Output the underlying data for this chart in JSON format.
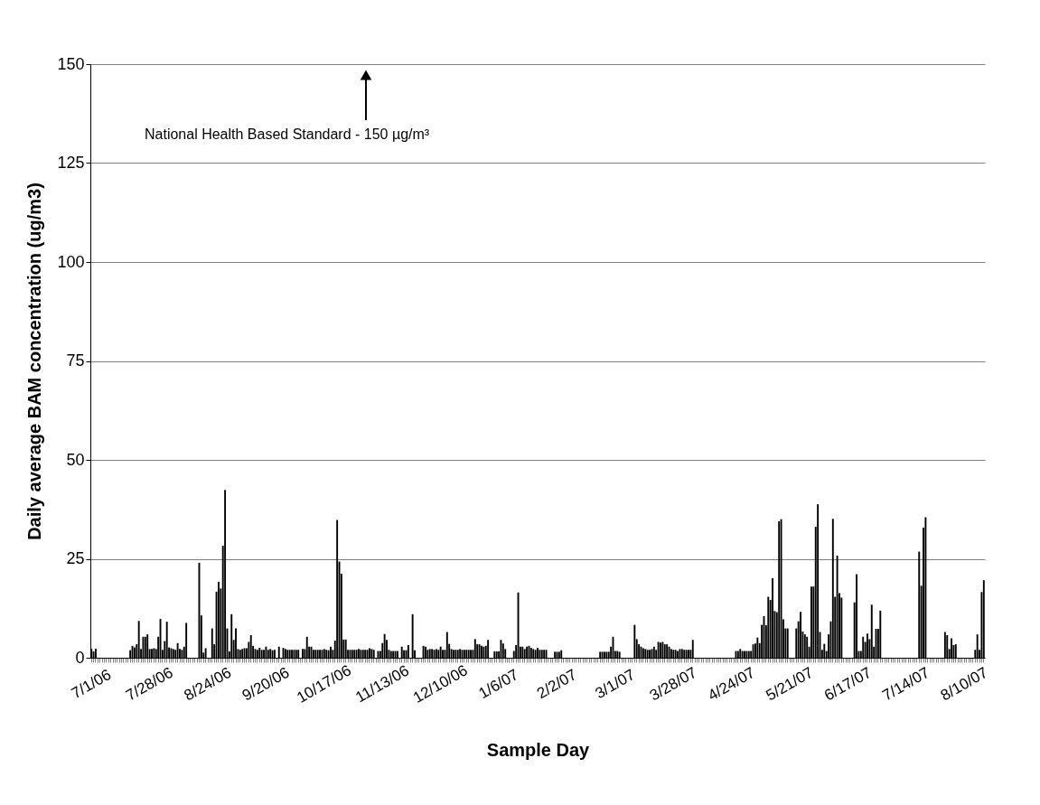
{
  "chart_data": {
    "type": "bar",
    "xlabel": "Sample Day",
    "ylabel": "Daily average BAM concentration (ug/m3)",
    "annotations": [
      "National Health Based Standard  - 150 µg/m³"
    ],
    "color": "#000000",
    "ylim": [
      0,
      150
    ],
    "yticks": [
      0,
      25,
      50,
      75,
      100,
      125,
      150
    ],
    "grid": "y",
    "categories": [
      "7/1/06",
      null,
      null,
      null,
      null,
      null,
      null,
      null,
      null,
      null,
      null,
      null,
      null,
      null,
      null,
      null,
      null,
      null,
      null,
      null,
      null,
      null,
      null,
      null,
      null,
      null,
      null,
      "7/28/06",
      null,
      null,
      null,
      null,
      null,
      null,
      null,
      null,
      null,
      null,
      null,
      null,
      null,
      null,
      null,
      null,
      null,
      null,
      null,
      null,
      null,
      null,
      null,
      null,
      null,
      null,
      "8/24/06",
      null,
      null,
      null,
      null,
      null,
      null,
      null,
      null,
      null,
      null,
      null,
      null,
      null,
      null,
      null,
      null,
      null,
      null,
      null,
      null,
      null,
      null,
      null,
      null,
      null,
      null,
      "9/20/06",
      null,
      null,
      null,
      null,
      null,
      null,
      null,
      null,
      null,
      null,
      null,
      null,
      null,
      null,
      null,
      null,
      null,
      null,
      null,
      null,
      null,
      null,
      null,
      null,
      null,
      null,
      "10/17/06",
      null,
      null,
      null,
      null,
      null,
      null,
      null,
      null,
      null,
      null,
      null,
      null,
      null,
      null,
      null,
      null,
      null,
      null,
      null,
      null,
      null,
      null,
      null,
      null,
      null,
      null,
      "11/13/06",
      null,
      null,
      null,
      null,
      null,
      null,
      null,
      null,
      null,
      null,
      null,
      null,
      null,
      null,
      null,
      null,
      null,
      null,
      null,
      null,
      null,
      null,
      null,
      null,
      null,
      null,
      "12/10/06",
      null,
      null,
      null,
      null,
      null,
      null,
      null,
      null,
      null,
      null,
      null,
      null,
      null,
      null,
      null,
      null,
      null,
      null,
      null,
      null,
      null,
      null,
      null,
      null,
      null,
      null,
      "1/6/07",
      null,
      null,
      null,
      null,
      null,
      null,
      null,
      null,
      null,
      null,
      null,
      null,
      null,
      null,
      null,
      null,
      null,
      null,
      null,
      null,
      null,
      null,
      null,
      null,
      null,
      null,
      "2/2/07",
      null,
      null,
      null,
      null,
      null,
      null,
      null,
      null,
      null,
      null,
      null,
      null,
      null,
      null,
      null,
      null,
      null,
      null,
      null,
      null,
      null,
      null,
      null,
      null,
      null,
      null,
      "3/1/07",
      null,
      null,
      null,
      null,
      null,
      null,
      null,
      null,
      null,
      null,
      null,
      null,
      null,
      null,
      null,
      null,
      null,
      null,
      null,
      null,
      null,
      null,
      null,
      null,
      null,
      null,
      "3/28/07",
      null,
      null,
      null,
      null,
      null,
      null,
      null,
      null,
      null,
      null,
      null,
      null,
      null,
      null,
      null,
      null,
      null,
      null,
      null,
      null,
      null,
      null,
      null,
      null,
      null,
      null,
      "4/24/07",
      null,
      null,
      null,
      null,
      null,
      null,
      null,
      null,
      null,
      null,
      null,
      null,
      null,
      null,
      null,
      null,
      null,
      null,
      null,
      null,
      null,
      null,
      null,
      null,
      null,
      null,
      "5/21/07",
      null,
      null,
      null,
      null,
      null,
      null,
      null,
      null,
      null,
      null,
      null,
      null,
      null,
      null,
      null,
      null,
      null,
      null,
      null,
      null,
      null,
      null,
      null,
      null,
      null,
      null,
      "6/17/07",
      null,
      null,
      null,
      null,
      null,
      null,
      null,
      null,
      null,
      null,
      null,
      null,
      null,
      null,
      null,
      null,
      null,
      null,
      null,
      null,
      null,
      null,
      null,
      null,
      null,
      null,
      "7/14/07",
      null,
      null,
      null,
      null,
      null,
      null,
      null,
      null,
      null,
      null,
      null,
      null,
      null,
      null,
      null,
      null,
      null,
      null,
      null,
      null,
      null,
      null,
      null,
      null,
      null,
      null,
      "8/10/07",
      null,
      null,
      null,
      null,
      null,
      null,
      null,
      null,
      null
    ],
    "values": [
      2.3,
      1.6,
      2.3,
      null,
      null,
      null,
      null,
      null,
      null,
      null,
      null,
      null,
      null,
      null,
      null,
      null,
      null,
      null,
      1.9,
      3.0,
      2.6,
      3.4,
      9.3,
      2.2,
      5.3,
      5.3,
      5.9,
      2.2,
      2.2,
      2.4,
      2.2,
      5.3,
      9.8,
      2.0,
      4.2,
      9.1,
      2.6,
      2.4,
      2.2,
      2.0,
      3.7,
      2.2,
      2.0,
      2.8,
      8.8,
      null,
      null,
      null,
      null,
      null,
      24.0,
      10.7,
      1.3,
      2.4,
      null,
      null,
      7.4,
      3.4,
      16.7,
      19.2,
      17.5,
      28.3,
      42.4,
      7.4,
      1.6,
      11.0,
      4.5,
      7.4,
      2.2,
      2.0,
      2.2,
      2.4,
      2.4,
      4.0,
      5.7,
      3.0,
      2.2,
      2.0,
      2.5,
      2.0,
      2.0,
      2.8,
      2.0,
      2.2,
      1.9,
      2.0,
      null,
      2.8,
      null,
      2.5,
      2.2,
      2.0,
      2.0,
      2.0,
      2.0,
      2.0,
      2.0,
      null,
      2.2,
      2.2,
      5.3,
      2.8,
      2.8,
      2.0,
      2.0,
      2.0,
      2.0,
      2.0,
      2.2,
      2.0,
      1.9,
      2.8,
      2.0,
      4.3,
      34.8,
      24.3,
      21.2,
      4.6,
      4.6,
      2.0,
      2.0,
      2.0,
      2.0,
      2.0,
      2.2,
      2.0,
      2.0,
      2.0,
      2.0,
      2.4,
      2.2,
      2.0,
      null,
      1.7,
      1.7,
      3.7,
      6.0,
      4.5,
      2.0,
      1.7,
      1.7,
      1.7,
      1.7,
      null,
      2.8,
      1.9,
      1.9,
      3.2,
      null,
      11.0,
      1.9,
      null,
      null,
      null,
      3.0,
      2.8,
      2.0,
      2.2,
      2.2,
      2.0,
      2.2,
      2.0,
      2.8,
      2.0,
      2.0,
      6.5,
      3.5,
      2.2,
      2.0,
      2.0,
      2.0,
      2.2,
      2.0,
      2.0,
      2.0,
      2.0,
      2.0,
      2.0,
      4.7,
      3.4,
      3.4,
      3.0,
      2.8,
      3.0,
      4.5,
      null,
      null,
      1.6,
      1.6,
      1.6,
      4.5,
      3.6,
      2.2,
      null,
      null,
      null,
      1.7,
      3.2,
      16.5,
      2.8,
      2.8,
      2.2,
      2.8,
      3.0,
      2.5,
      2.2,
      2.0,
      2.5,
      2.0,
      2.0,
      2.0,
      2.0,
      null,
      null,
      null,
      1.5,
      1.5,
      1.5,
      1.9,
      null,
      null,
      null,
      null,
      null,
      null,
      null,
      null,
      null,
      null,
      null,
      null,
      null,
      null,
      null,
      null,
      null,
      1.5,
      1.5,
      1.5,
      1.5,
      1.5,
      2.8,
      5.3,
      1.7,
      1.7,
      1.5,
      null,
      null,
      null,
      null,
      null,
      null,
      8.3,
      4.7,
      3.4,
      2.8,
      2.4,
      2.2,
      2.0,
      2.0,
      2.2,
      2.8,
      2.0,
      4.0,
      3.8,
      4.0,
      3.4,
      3.4,
      2.8,
      2.2,
      2.0,
      2.0,
      1.7,
      2.2,
      2.2,
      2.0,
      2.0,
      2.0,
      2.0,
      4.5,
      null,
      null,
      null,
      null,
      null,
      null,
      null,
      null,
      null,
      null,
      null,
      null,
      null,
      null,
      null,
      null,
      null,
      null,
      null,
      1.7,
      1.7,
      2.2,
      1.7,
      1.7,
      1.7,
      1.7,
      1.7,
      3.4,
      3.6,
      5.1,
      3.7,
      8.3,
      10.5,
      8.2,
      15.4,
      14.6,
      20.1,
      11.8,
      11.5,
      34.5,
      35.0,
      9.7,
      7.4,
      7.4,
      null,
      null,
      null,
      7.4,
      9.2,
      11.6,
      6.6,
      5.9,
      5.3,
      2.8,
      18.0,
      18.0,
      33.1,
      38.8,
      6.5,
      2.0,
      3.5,
      1.7,
      5.9,
      9.2,
      35.1,
      15.4,
      25.8,
      16.3,
      15.2,
      null,
      null,
      null,
      null,
      null,
      14.0,
      21.1,
      1.7,
      1.7,
      5.3,
      4.0,
      6.1,
      4.7,
      13.4,
      2.8,
      7.3,
      7.3,
      11.9,
      null,
      null,
      null,
      null,
      null,
      null,
      null,
      null,
      null,
      null,
      null,
      null,
      null,
      null,
      null,
      null,
      null,
      26.8,
      18.2,
      32.9,
      35.5,
      null,
      null,
      null,
      null,
      null,
      null,
      null,
      null,
      6.5,
      5.7,
      2.2,
      4.9,
      3.2,
      3.4,
      null,
      null,
      null,
      null,
      null,
      null,
      null,
      null,
      2.0,
      5.9,
      2.0,
      16.6,
      19.6
    ]
  }
}
